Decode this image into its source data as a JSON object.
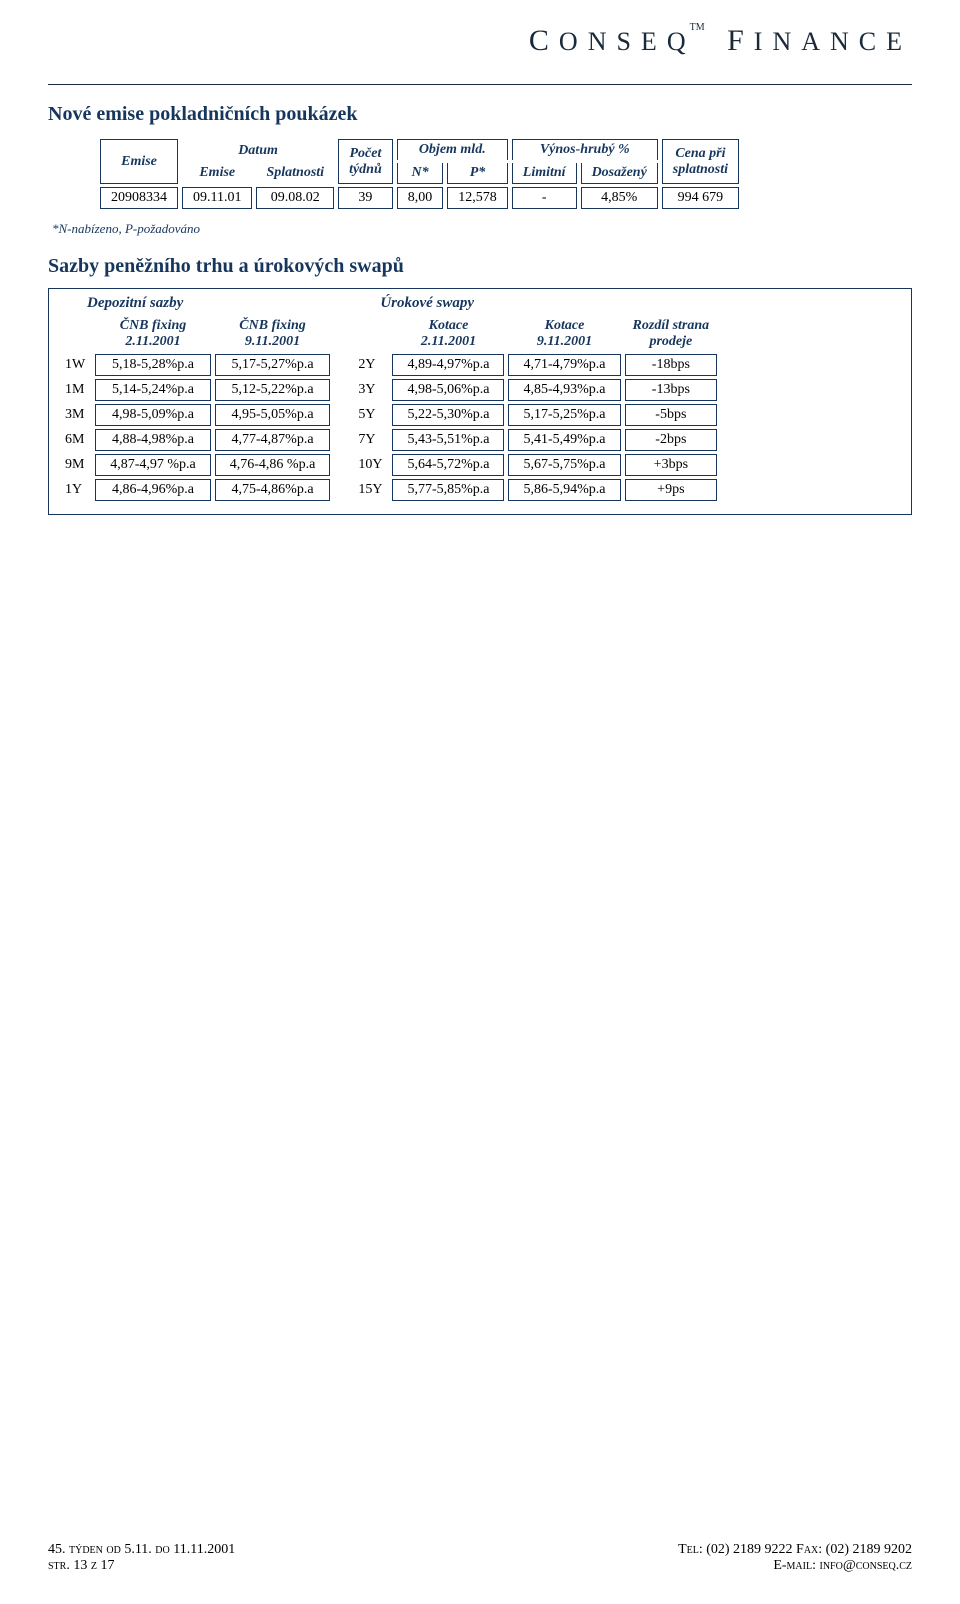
{
  "logo": {
    "part1": "C",
    "part2": "ONSEQ",
    "tm": "TM",
    "part3": "F",
    "part4": "INANCE"
  },
  "section1": {
    "title": "Nové emise pokladničních poukázek",
    "headers": {
      "emise": "Emise",
      "datum_emise": "Datum\nEmise",
      "splatnosti": "Splatnosti",
      "pocet_tydnu": "Počet\ntýdnů",
      "objem": "Objem mld.",
      "n": "N*",
      "p": "P*",
      "vynos": "Výnos-hrubý %",
      "limitni": "Limitní",
      "dosazeny": "Dosažený",
      "cena": "Cena při\nsplatnosti"
    },
    "row": {
      "emise": "20908334",
      "datum1": "09.11.01",
      "datum2": "09.08.02",
      "tydnu": "39",
      "n": "8,00",
      "p": "12,578",
      "limitni": "-",
      "dosazeny": "4,85%",
      "cena": "994 679"
    },
    "footnote": "*N-nabízeno, P-požadováno"
  },
  "section2": {
    "title": "Sazby peněžního trhu a úrokových swapů",
    "left_title": "Depozitní sazby",
    "right_title": "Úrokové swapy",
    "left_headers": {
      "a": "ČNB fixing\n2.11.2001",
      "b": "ČNB fixing\n9.11.2001"
    },
    "right_headers": {
      "a": "Kotace\n2.11.2001",
      "b": "Kotace\n9.11.2001",
      "c": "Rozdíl strana\nprodeje"
    },
    "left_rows": [
      {
        "label": "1W",
        "a": "5,18-5,28%p.a",
        "b": "5,17-5,27%p.a"
      },
      {
        "label": "1M",
        "a": "5,14-5,24%p.a",
        "b": "5,12-5,22%p.a"
      },
      {
        "label": "3M",
        "a": "4,98-5,09%p.a",
        "b": "4,95-5,05%p.a"
      },
      {
        "label": "6M",
        "a": "4,88-4,98%p.a",
        "b": "4,77-4,87%p.a"
      },
      {
        "label": "9M",
        "a": "4,87-4,97 %p.a",
        "b": "4,76-4,86 %p.a"
      },
      {
        "label": "1Y",
        "a": "4,86-4,96%p.a",
        "b": "4,75-4,86%p.a"
      }
    ],
    "right_rows": [
      {
        "label": "2Y",
        "a": "4,89-4,97%p.a",
        "b": "4,71-4,79%p.a",
        "c": "-18bps"
      },
      {
        "label": "3Y",
        "a": "4,98-5,06%p.a",
        "b": "4,85-4,93%p.a",
        "c": "-13bps"
      },
      {
        "label": "5Y",
        "a": "5,22-5,30%p.a",
        "b": "5,17-5,25%p.a",
        "c": "-5bps"
      },
      {
        "label": "7Y",
        "a": "5,43-5,51%p.a",
        "b": "5,41-5,49%p.a",
        "c": "-2bps"
      },
      {
        "label": "10Y",
        "a": "5,64-5,72%p.a",
        "b": "5,67-5,75%p.a",
        "c": "+3bps"
      },
      {
        "label": "15Y",
        "a": "5,77-5,85%p.a",
        "b": "5,86-5,94%p.a",
        "c": "+9ps"
      }
    ]
  },
  "footer": {
    "left_line1": "45. týden od 5.11. do 11.11.2001",
    "left_line2": "str. 13 z 17",
    "right_line1": "Tel: (02) 2189 9222  Fax: (02) 2189 9202",
    "right_line2": "E-mail: info@conseq.cz"
  },
  "colors": {
    "heading": "#17365d",
    "border": "#17365d",
    "text": "#000000",
    "background": "#ffffff"
  }
}
